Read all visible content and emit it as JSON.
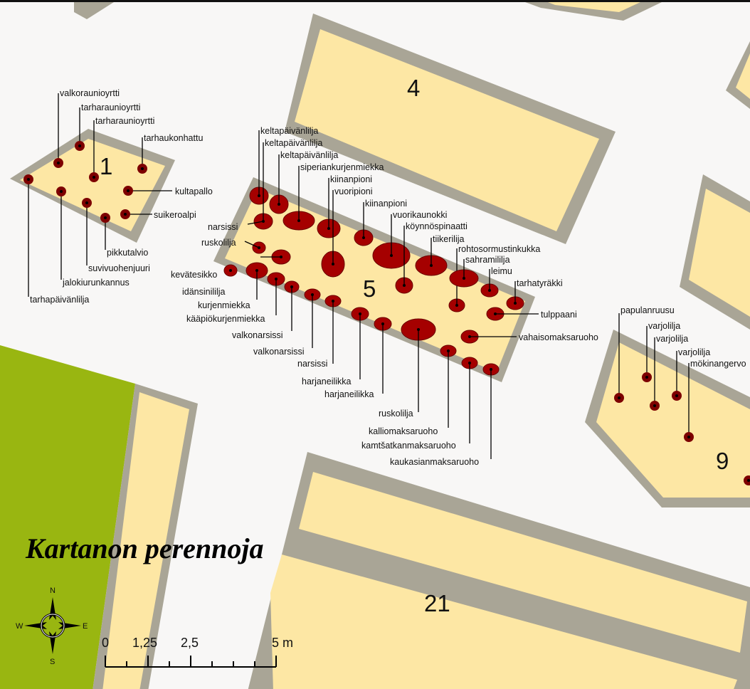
{
  "map": {
    "title": "Kartanon perennoja",
    "bed_numbers": [
      "1",
      "4",
      "5",
      "9",
      "21"
    ],
    "compass": {
      "n": "N",
      "e": "E",
      "s": "S",
      "w": "W"
    },
    "scale": {
      "ticks": [
        "0",
        "1,25",
        "2,5",
        "5 m"
      ]
    }
  },
  "labels": {
    "bed1": {
      "valkoraunioyrtti": "valkoraunioyrtti",
      "tarharaunioyrtti1": "tarharaunioyrtti",
      "tarharaunioyrtti2": "tarharaunioyrtti",
      "tarhaukonhattu": "tarhaukonhattu",
      "kultapallo": "kultapallo",
      "suikeroalpi": "suikeroalpi",
      "pikkutalvio": "pikkutalvio",
      "suvivuohenjuuri": "suvivuohenjuuri",
      "jalokiurunkannus": "jalokiurunkannus",
      "tarhapaivanlilja": "tarhapäivänlilja"
    },
    "bed5": {
      "keltapaivanlilja1": "keltapäivänlilja",
      "keltapaivanlilja2": "keltapäivänlilja",
      "keltapaivanlilja3": "keltapäivänlilja",
      "siperiankurjenmiekka": "siperiankurjenmiekka",
      "kiinanpioni1": "kiinanpioni",
      "vuoripioni": "vuoripioni",
      "kiinanpioni2": "kiinanpioni",
      "vuorikaunokki": "vuorikaunokki",
      "koynnospinaatti": "köynnöspinaatti",
      "tiikerilija": "tiikerilija",
      "rohtosormustinkukka": "rohtosormustinkukka",
      "sahramililja": "sahramililja",
      "leimu": "leimu",
      "tarhatyrakki": "tarhatyräkki",
      "tulppaani": "tulppaani",
      "vahaisomaksaruoho": "vahaisomaksaruoho",
      "narsissi_top": "narsissi",
      "ruskolilja_top": "ruskolilja",
      "kevatesikko": "kevätesikko",
      "idansinililja": "idänsinililja",
      "kurjenmiekka": "kurjenmiekka",
      "kaapiokurjenmiekka": "kääpiökurjenmiekka",
      "valkonarsissi1": "valkonarsissi",
      "valkonarsissi2": "valkonarsissi",
      "narsissi_bottom": "narsissi",
      "harjaneilikka1": "harjaneilikka",
      "harjaneilikka2": "harjaneilikka",
      "ruskolilja_bottom": "ruskolilja",
      "kalliomaksaruoho": "kalliomaksaruoho",
      "kamtsatkanmaksaruoho": "kamtšatkanmaksaruoho",
      "kaukasianmaksaruoho": "kaukasianmaksaruoho"
    },
    "bed9": {
      "papulanruusu": "papulanruusu",
      "varjolilja1": "varjolilja",
      "varjolilja2": "varjolilja",
      "varjolilja3": "varjolilja",
      "mokinangervo": "mökinangervo"
    }
  },
  "colors": {
    "bed_fill": "#fde7a4",
    "bed_border": "#a9a596",
    "lawn": "#99b611",
    "plant_fill": "#a50000",
    "background": "#f8f7f6"
  }
}
